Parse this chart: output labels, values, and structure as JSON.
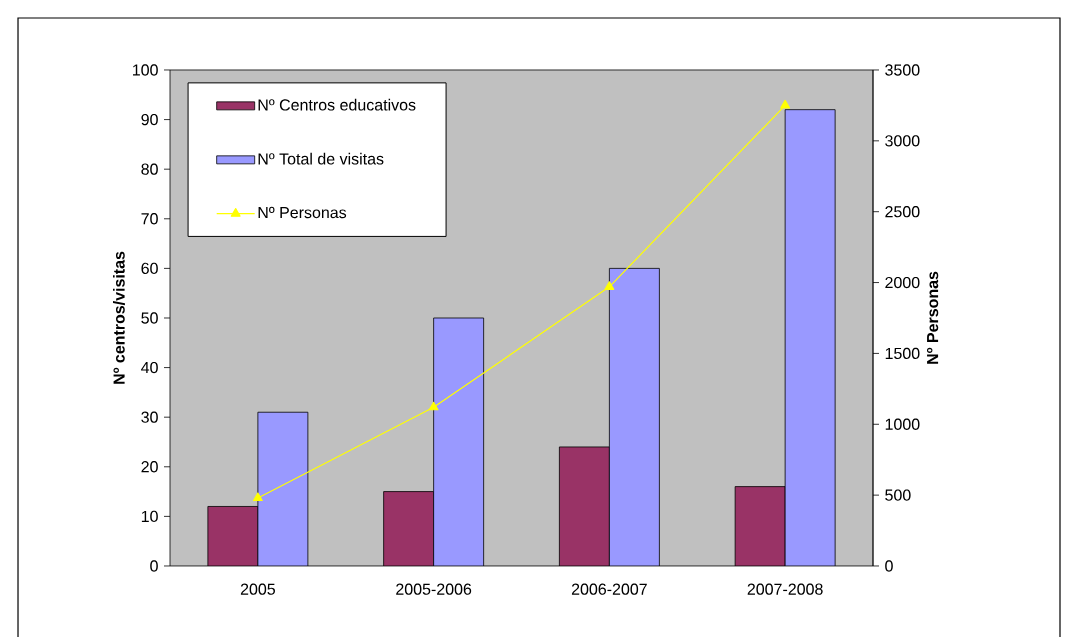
{
  "chart_data": {
    "type": "bar",
    "categories": [
      "2005",
      "2005-2006",
      "2006-2007",
      "2007-2008"
    ],
    "ylabel": "Nº centros/visitas",
    "y2label": "Nº Personas",
    "series": [
      {
        "name": "Nº Centros educativos",
        "color": "#993366",
        "values": [
          12,
          15,
          24,
          16
        ]
      },
      {
        "name": "Nº Total de visitas",
        "color": "#9999ff",
        "values": [
          31,
          50,
          60,
          92
        ]
      },
      {
        "name": "Nº Personas",
        "type": "line",
        "axis": "y2",
        "color": "#ffff00",
        "marker": "triangle",
        "values": [
          480,
          1120,
          1970,
          3250
        ]
      }
    ],
    "ylim": [
      0,
      100
    ],
    "yticks": [
      0,
      10,
      20,
      30,
      40,
      50,
      60,
      70,
      80,
      90,
      100
    ],
    "y2lim": [
      0,
      3500
    ],
    "y2ticks": [
      0,
      500,
      1000,
      1500,
      2000,
      2500,
      3000,
      3500
    ],
    "legend": "top left",
    "grid": false
  }
}
